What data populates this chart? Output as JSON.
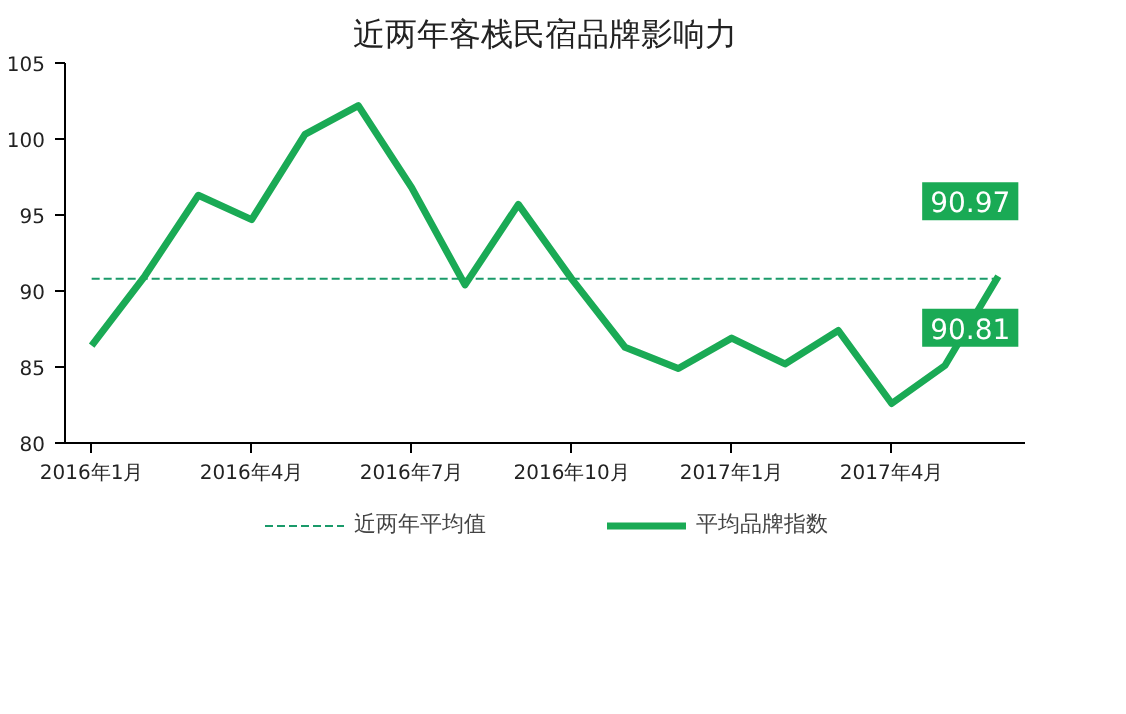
{
  "chart_data": {
    "type": "line",
    "title": "近两年客栈民宿品牌影响力",
    "categories": [
      "2016年1月",
      null,
      null,
      "2016年4月",
      null,
      null,
      "2016年7月",
      null,
      null,
      "2016年10月",
      null,
      null,
      "2017年1月",
      null,
      null,
      "2017年4月",
      null,
      null
    ],
    "series": [
      {
        "name": "近两年平均值",
        "color": "#1a9a6a",
        "line_style": "dashed",
        "values": [
          90.81,
          90.81,
          90.81,
          90.81,
          90.81,
          90.81,
          90.81,
          90.81,
          90.81,
          90.81,
          90.81,
          90.81,
          90.81,
          90.81,
          90.81,
          90.81,
          90.81,
          90.81
        ],
        "value_labels": [
          null,
          null,
          null,
          null,
          null,
          null,
          null,
          null,
          null,
          null,
          null,
          null,
          null,
          null,
          null,
          null,
          null,
          "90.81"
        ]
      },
      {
        "name": "平均品牌指数",
        "color": "#1aaa55",
        "line_style": "solid",
        "values": [
          86.4,
          91.0,
          96.3,
          94.7,
          100.3,
          102.2,
          96.8,
          90.4,
          95.7,
          90.8,
          86.3,
          84.9,
          86.9,
          85.2,
          87.4,
          82.6,
          85.1,
          90.97
        ],
        "value_labels": [
          null,
          null,
          null,
          null,
          null,
          null,
          null,
          null,
          null,
          null,
          null,
          null,
          null,
          null,
          null,
          null,
          null,
          "90.97"
        ]
      }
    ],
    "ylim": [
      80,
      105
    ],
    "yticks": [
      80,
      85,
      90,
      95,
      100,
      105
    ],
    "grid": false,
    "legend": "bottom",
    "marker": "none"
  }
}
